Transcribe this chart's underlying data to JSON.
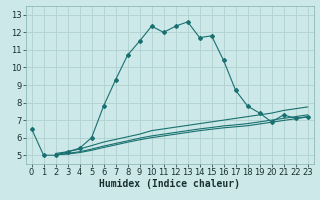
{
  "xlabel": "Humidex (Indice chaleur)",
  "bg_color": "#cce8e8",
  "grid_color": "#b0cfcf",
  "line_color": "#1a7070",
  "xlim": [
    -0.5,
    23.5
  ],
  "ylim": [
    4.5,
    13.5
  ],
  "xticks": [
    0,
    1,
    2,
    3,
    4,
    5,
    6,
    7,
    8,
    9,
    10,
    11,
    12,
    13,
    14,
    15,
    16,
    17,
    18,
    19,
    20,
    21,
    22,
    23
  ],
  "yticks": [
    5,
    6,
    7,
    8,
    9,
    10,
    11,
    12,
    13
  ],
  "line1_x": [
    0,
    1,
    2,
    3,
    4,
    5,
    6,
    7,
    8,
    9,
    10,
    11,
    12,
    13,
    14,
    15,
    16,
    17,
    18,
    19,
    20,
    21,
    22,
    23
  ],
  "line1_y": [
    6.5,
    5.0,
    5.0,
    5.2,
    5.4,
    6.0,
    7.8,
    9.3,
    10.7,
    11.5,
    12.35,
    12.0,
    12.35,
    12.6,
    11.7,
    11.8,
    10.4,
    8.7,
    7.8,
    7.4,
    6.9,
    7.3,
    7.1,
    7.2
  ],
  "line2_x": [
    2,
    3,
    4,
    5,
    6,
    7,
    8,
    9,
    10,
    11,
    12,
    13,
    14,
    15,
    16,
    17,
    18,
    19,
    20,
    21,
    22,
    23
  ],
  "line2_y": [
    5.1,
    5.2,
    5.35,
    5.55,
    5.75,
    5.9,
    6.05,
    6.2,
    6.4,
    6.5,
    6.6,
    6.7,
    6.8,
    6.9,
    7.0,
    7.1,
    7.2,
    7.3,
    7.4,
    7.55,
    7.65,
    7.75
  ],
  "line3_x": [
    2,
    3,
    4,
    5,
    6,
    7,
    8,
    9,
    10,
    11,
    12,
    13,
    14,
    15,
    16,
    17,
    18,
    19,
    20,
    21,
    22,
    23
  ],
  "line3_y": [
    5.05,
    5.1,
    5.2,
    5.35,
    5.52,
    5.67,
    5.82,
    5.97,
    6.1,
    6.2,
    6.3,
    6.4,
    6.5,
    6.58,
    6.67,
    6.73,
    6.8,
    6.9,
    7.0,
    7.1,
    7.2,
    7.3
  ],
  "line4_x": [
    2,
    3,
    4,
    5,
    6,
    7,
    8,
    9,
    10,
    11,
    12,
    13,
    14,
    15,
    16,
    17,
    18,
    19,
    20,
    21,
    22,
    23
  ],
  "line4_y": [
    5.02,
    5.07,
    5.15,
    5.28,
    5.44,
    5.59,
    5.74,
    5.88,
    6.0,
    6.1,
    6.2,
    6.3,
    6.4,
    6.48,
    6.56,
    6.62,
    6.68,
    6.78,
    6.88,
    6.98,
    7.08,
    7.18
  ],
  "marker": "D",
  "markersize": 2.0,
  "linewidth": 0.8,
  "xlabel_fontsize": 7,
  "tick_fontsize": 6
}
